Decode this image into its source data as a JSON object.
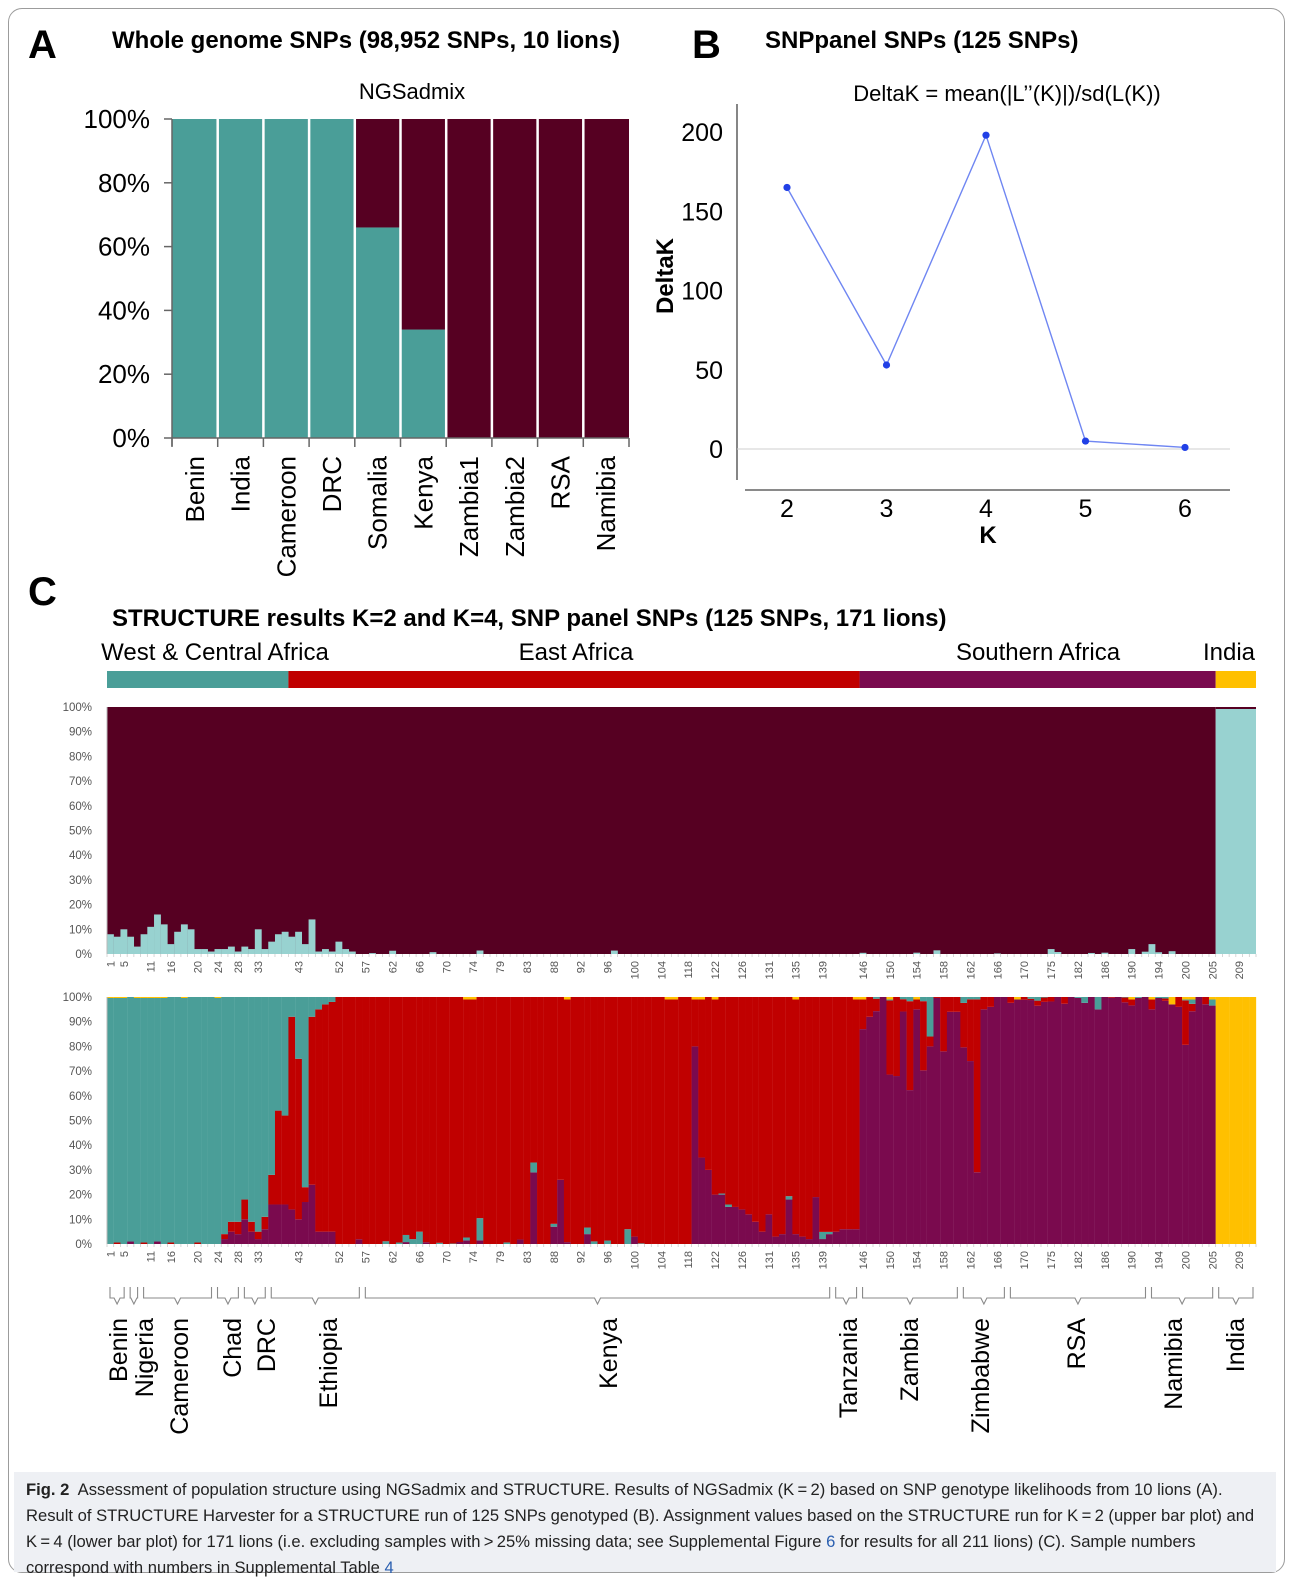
{
  "figure_label": "Fig. 2",
  "caption": {
    "part1": "Assessment of population structure using NGSadmix and STRUCTURE. Results of NGSadmix (K = 2) based on SNP genotype likelihoods from 10 lions (A). Result of STRUCTURE Harvester for a STRUCTURE run of 125 SNPs genotyped (B). Assignment values based on the STRUCTURE run for K = 2 (upper bar plot) and K = 4 (lower bar plot) for 171 lions (i.e. excluding samples with > 25% missing data; see Supplemental Figure ",
    "link1": "6",
    "part2": " for results for all 211 lions) (C). Sample numbers correspond with numbers in Supplemental Table ",
    "link2": "4"
  },
  "panels": {
    "A": {
      "letter": "A",
      "title": "Whole genome SNPs (98,952 SNPs, 10 lions)",
      "subtitle": "NGSadmix"
    },
    "B": {
      "letter": "B",
      "title": "SNPpanel SNPs (125 SNPs)",
      "subtitle": "DeltaK = mean(|L’’(K)|)/sd(L(K))"
    },
    "C": {
      "letter": "C",
      "title": "STRUCTURE results K=2 and K=4, SNP panel SNPs (125 SNPs, 171 lions)"
    }
  },
  "colors": {
    "teal": "#4a9e98",
    "maroon": "#560022",
    "red": "#c00000",
    "purple": "#7a0a4e",
    "yellow": "#ffc000",
    "lightblue": "#98d2d0",
    "blue": "#3d5cf0"
  },
  "chart_data": [
    {
      "type": "bar",
      "stacked": true,
      "title": "NGSadmix",
      "categories": [
        "Benin",
        "India",
        "Cameroon",
        "DRC",
        "Somalia",
        "Kenya",
        "Zambia1",
        "Zambia2",
        "RSA",
        "Namibia"
      ],
      "series": [
        {
          "color": "teal",
          "values": [
            100,
            100,
            100,
            100,
            66,
            34,
            0,
            0,
            0,
            0
          ]
        },
        {
          "color": "maroon",
          "values": [
            0,
            0,
            0,
            0,
            34,
            66,
            100,
            100,
            100,
            100
          ]
        }
      ],
      "yticks": [
        "0%",
        "20%",
        "40%",
        "60%",
        "80%",
        "100%"
      ],
      "ylim": [
        0,
        100
      ]
    },
    {
      "type": "line",
      "title": "DeltaK = mean(|L’’(K)|)/sd(L(K))",
      "xlabel": "K",
      "ylabel": "DeltaK",
      "x": [
        2,
        3,
        4,
        5,
        6
      ],
      "y": [
        165,
        53,
        198,
        5,
        1
      ],
      "xticks": [
        "2",
        "3",
        "4",
        "5",
        "6"
      ],
      "yticks": [
        "0",
        "50",
        "100",
        "150",
        "200"
      ],
      "ylim": [
        -20,
        220
      ]
    },
    {
      "type": "bar",
      "stacked": true,
      "title": "K=2",
      "region_labels": [
        "West & Central Africa",
        "East Africa",
        "Southern Africa",
        "India"
      ],
      "yticks": [
        "0%",
        "10%",
        "20%",
        "30%",
        "40%",
        "50%",
        "60%",
        "70%",
        "80%",
        "90%",
        "100%"
      ],
      "xtick_labels": [
        "1",
        "5",
        "11",
        "16",
        "20",
        "24",
        "28",
        "33",
        "43",
        "52",
        "57",
        "62",
        "66",
        "70",
        "74",
        "79",
        "83",
        "88",
        "92",
        "96",
        "100",
        "104",
        "118",
        "122",
        "126",
        "131",
        "135",
        "139",
        "146",
        "150",
        "154",
        "158",
        "162",
        "166",
        "170",
        "175",
        "182",
        "186",
        "190",
        "194",
        "200",
        "205",
        "209"
      ],
      "description_series": [
        {
          "color": "lightblue"
        },
        {
          "color": "maroon"
        }
      ],
      "individuals": 171
    },
    {
      "type": "bar",
      "stacked": true,
      "title": "K=4",
      "yticks": [
        "0%",
        "10%",
        "20%",
        "30%",
        "40%",
        "50%",
        "60%",
        "70%",
        "80%",
        "90%",
        "100%"
      ],
      "xtick_labels": [
        "1",
        "5",
        "11",
        "16",
        "20",
        "24",
        "28",
        "33",
        "43",
        "52",
        "57",
        "62",
        "66",
        "70",
        "74",
        "79",
        "83",
        "88",
        "92",
        "96",
        "100",
        "104",
        "118",
        "122",
        "126",
        "131",
        "135",
        "139",
        "146",
        "150",
        "154",
        "158",
        "162",
        "166",
        "170",
        "175",
        "182",
        "186",
        "190",
        "194",
        "200",
        "205",
        "209"
      ],
      "populations": [
        "Benin",
        "Nigeria",
        "Cameroon",
        "Chad",
        "DRC",
        "Ethiopia",
        "Kenya",
        "Tanzania",
        "Zambia",
        "Zimbabwe",
        "RSA",
        "Namibia",
        "India"
      ],
      "individuals": 171
    }
  ]
}
